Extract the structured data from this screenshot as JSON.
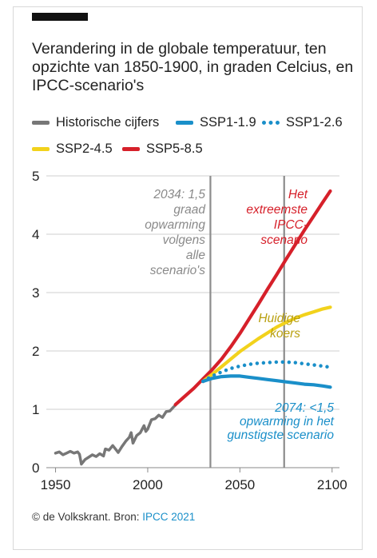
{
  "header": {
    "title": "Verandering in de globale temperatuur, ten opzichte van 1850-1900, in graden Celcius, en IPCC-scenario's"
  },
  "legend": [
    {
      "label": "Historische cijfers",
      "color": "#777777",
      "style": "solid"
    },
    {
      "label": "SSP1-1.9",
      "color": "#1a8fc9",
      "style": "solid"
    },
    {
      "label": "SSP1-2.6",
      "color": "#1a8fc9",
      "style": "dotted"
    },
    {
      "label": "SSP2-4.5",
      "color": "#f2d21c",
      "style": "solid"
    },
    {
      "label": "SSP5-8.5",
      "color": "#d6202a",
      "style": "solid"
    }
  ],
  "footer": {
    "credit": "© de Volkskrant. Bron: ",
    "source": "IPCC 2021"
  },
  "chart_data": {
    "type": "line",
    "xlim": [
      1945,
      2104
    ],
    "ylim": [
      0,
      5
    ],
    "x_ticks": [
      1950,
      2000,
      2050,
      2100
    ],
    "y_ticks": [
      0,
      1,
      2,
      3,
      4,
      5
    ],
    "grid": "horizontal",
    "reference_lines": [
      2034,
      2074
    ],
    "series": [
      {
        "name": "Historische cijfers",
        "color": "#777777",
        "style": "solid",
        "x": [
          1950,
          1952,
          1954,
          1956,
          1958,
          1960,
          1962,
          1963,
          1964,
          1965,
          1966,
          1968,
          1970,
          1972,
          1974,
          1976,
          1977,
          1979,
          1981,
          1983,
          1984,
          1986,
          1988,
          1990,
          1991,
          1992,
          1994,
          1996,
          1998,
          1999,
          2000,
          2002,
          2004,
          2006,
          2008,
          2010,
          2012,
          2014,
          2015
        ],
        "y": [
          0.25,
          0.27,
          0.22,
          0.25,
          0.28,
          0.25,
          0.27,
          0.23,
          0.06,
          0.1,
          0.14,
          0.18,
          0.22,
          0.19,
          0.24,
          0.2,
          0.32,
          0.3,
          0.38,
          0.3,
          0.26,
          0.36,
          0.45,
          0.52,
          0.6,
          0.42,
          0.55,
          0.6,
          0.72,
          0.62,
          0.66,
          0.82,
          0.84,
          0.9,
          0.86,
          0.96,
          0.97,
          1.04,
          1.07
        ]
      },
      {
        "name": "SSP5-8.5",
        "color": "#d6202a",
        "style": "solid",
        "x": [
          2015,
          2020,
          2025,
          2030,
          2035,
          2040,
          2045,
          2050,
          2055,
          2060,
          2065,
          2070,
          2075,
          2080,
          2085,
          2090,
          2095,
          2099
        ],
        "y": [
          1.08,
          1.22,
          1.36,
          1.52,
          1.68,
          1.86,
          2.07,
          2.3,
          2.55,
          2.8,
          3.06,
          3.31,
          3.57,
          3.82,
          4.07,
          4.31,
          4.55,
          4.74
        ]
      },
      {
        "name": "SSP2-4.5",
        "color": "#f2d21c",
        "style": "solid",
        "x": [
          2030,
          2035,
          2040,
          2045,
          2050,
          2055,
          2060,
          2065,
          2070,
          2075,
          2080,
          2085,
          2090,
          2095,
          2099
        ],
        "y": [
          1.48,
          1.6,
          1.73,
          1.86,
          1.99,
          2.1,
          2.21,
          2.31,
          2.41,
          2.49,
          2.56,
          2.62,
          2.67,
          2.72,
          2.75
        ]
      },
      {
        "name": "SSP1-2.6",
        "color": "#1a8fc9",
        "style": "dotted",
        "x": [
          2030,
          2035,
          2040,
          2045,
          2050,
          2055,
          2060,
          2065,
          2070,
          2075,
          2080,
          2085,
          2090,
          2095,
          2099
        ],
        "y": [
          1.48,
          1.57,
          1.64,
          1.7,
          1.74,
          1.77,
          1.79,
          1.8,
          1.81,
          1.81,
          1.8,
          1.78,
          1.76,
          1.74,
          1.72
        ]
      },
      {
        "name": "SSP1-1.9",
        "color": "#1a8fc9",
        "style": "solid",
        "x": [
          2030,
          2035,
          2040,
          2045,
          2050,
          2055,
          2060,
          2065,
          2070,
          2075,
          2080,
          2085,
          2090,
          2095,
          2099
        ],
        "y": [
          1.48,
          1.53,
          1.56,
          1.57,
          1.57,
          1.55,
          1.53,
          1.51,
          1.49,
          1.47,
          1.45,
          1.43,
          1.42,
          1.4,
          1.38
        ]
      }
    ],
    "annotations": [
      {
        "id": "a2034",
        "lines": [
          "2034: 1,5",
          "graad",
          "opwarming",
          "volgens",
          "alle",
          "scenario's"
        ],
        "color": "#8a8a8a"
      },
      {
        "id": "aextreme",
        "lines": [
          "Het",
          "extreemste",
          "IPCC-",
          "scenario"
        ],
        "color": "#d6202a"
      },
      {
        "id": "akoers",
        "lines": [
          "Huidige",
          "koers"
        ],
        "color": "#b9a010"
      },
      {
        "id": "a2074",
        "lines": [
          "2074: <1,5",
          "opwarming in het",
          "gunstigste scenario"
        ],
        "color": "#1a8fc9"
      }
    ]
  }
}
